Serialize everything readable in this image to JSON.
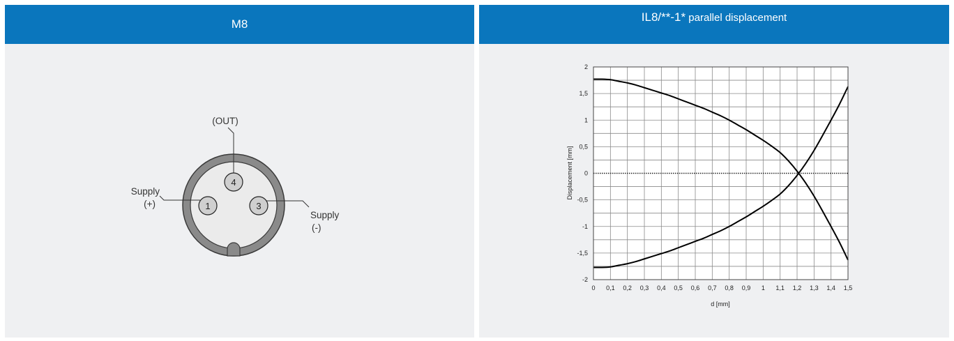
{
  "left_panel": {
    "title": "M8",
    "pins": [
      {
        "number": "4",
        "label": "(OUT)"
      },
      {
        "number": "1",
        "label_line1": "Supply",
        "label_line2": "(+)"
      },
      {
        "number": "3",
        "label_line1": "Supply",
        "label_line2": "(-)"
      }
    ]
  },
  "right_panel": {
    "title_part1": "IL8/**-1*",
    "title_part2": " parallel displacement"
  },
  "chart_data": {
    "type": "line",
    "title": "IL8/**-1* parallel displacement",
    "xlabel": "d [mm]",
    "ylabel": "Displacement [mm]",
    "xlim": [
      0,
      1.5
    ],
    "ylim": [
      -2,
      2
    ],
    "x_ticks": [
      "0",
      "0,1",
      "0,2",
      "0,3",
      "0,4",
      "0,5",
      "0,6",
      "0,7",
      "0,8",
      "0,9",
      "1",
      "1,1",
      "1,2",
      "1,3",
      "1,4",
      "1,5"
    ],
    "y_ticks": [
      "2",
      "1,5",
      "1",
      "0,5",
      "0",
      "-0,5",
      "-1",
      "-1,5",
      "-2"
    ],
    "grid": true,
    "series": [
      {
        "x": [
          0,
          0.05,
          0.1,
          0.15,
          0.2,
          0.25,
          0.3,
          0.35,
          0.4,
          0.45,
          0.5,
          0.55,
          0.6,
          0.65,
          0.7,
          0.75,
          0.8,
          0.85,
          0.9,
          0.95,
          1.0,
          1.05,
          1.1,
          1.15,
          1.2,
          1.25,
          1.3,
          1.35,
          1.4,
          1.45,
          1.5
        ],
        "y": [
          1.77,
          1.77,
          1.76,
          1.73,
          1.7,
          1.66,
          1.61,
          1.56,
          1.51,
          1.46,
          1.4,
          1.34,
          1.28,
          1.22,
          1.15,
          1.08,
          1.0,
          0.91,
          0.82,
          0.72,
          0.62,
          0.51,
          0.39,
          0.23,
          0.04,
          -0.18,
          -0.43,
          -0.71,
          -1.0,
          -1.3,
          -1.63
        ]
      },
      {
        "x": [
          0,
          0.05,
          0.1,
          0.15,
          0.2,
          0.25,
          0.3,
          0.35,
          0.4,
          0.45,
          0.5,
          0.55,
          0.6,
          0.65,
          0.7,
          0.75,
          0.8,
          0.85,
          0.9,
          0.95,
          1.0,
          1.05,
          1.1,
          1.15,
          1.2,
          1.25,
          1.3,
          1.35,
          1.4,
          1.45,
          1.5
        ],
        "y": [
          -1.77,
          -1.77,
          -1.76,
          -1.73,
          -1.7,
          -1.66,
          -1.61,
          -1.56,
          -1.51,
          -1.46,
          -1.4,
          -1.34,
          -1.28,
          -1.22,
          -1.15,
          -1.08,
          -1.0,
          -0.91,
          -0.82,
          -0.72,
          -0.62,
          -0.51,
          -0.39,
          -0.23,
          -0.04,
          0.18,
          0.43,
          0.71,
          1.0,
          1.3,
          1.63
        ]
      }
    ]
  }
}
